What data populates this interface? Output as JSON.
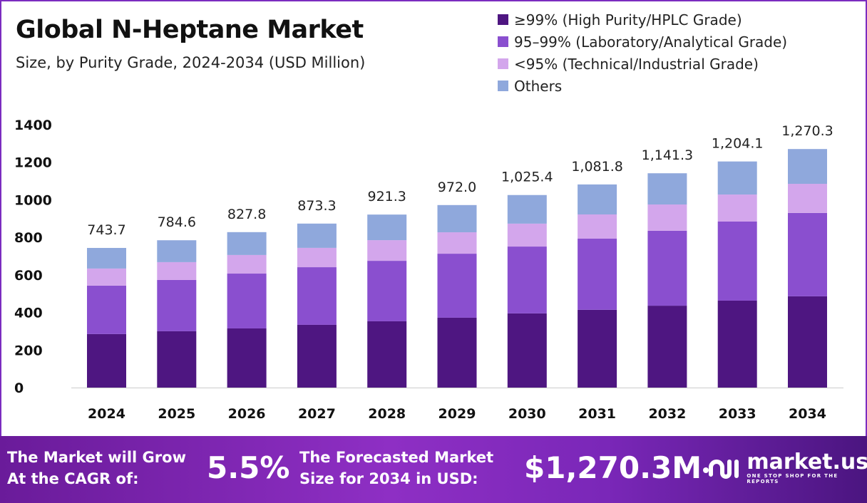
{
  "header": {
    "title": "Global N-Heptane Market",
    "subtitle": "Size, by Purity Grade, 2024-2034 (USD Million)"
  },
  "chart_data": {
    "type": "bar",
    "stacked": true,
    "categories": [
      "2024",
      "2025",
      "2026",
      "2027",
      "2028",
      "2029",
      "2030",
      "2031",
      "2032",
      "2033",
      "2034"
    ],
    "series": [
      {
        "name": "≥99% (High Purity/HPLC Grade)",
        "color": "#4e1681",
        "values": [
          285,
          300,
          315,
          334,
          353,
          372,
          395,
          414,
          436,
          463,
          486
        ]
      },
      {
        "name": "95–99% (Laboratory/Analytical Grade)",
        "color": "#8a4fcf",
        "values": [
          258,
          273,
          292,
          307,
          322,
          341,
          356,
          379,
          399,
          421,
          444
        ]
      },
      {
        "name": "<95% (Technical/Industrial Grade)",
        "color": "#d3a6ec",
        "values": [
          91,
          95,
          99,
          103,
          110,
          114,
          122,
          129,
          140,
          144,
          155
        ]
      },
      {
        "name": "Others",
        "color": "#8fa8dc",
        "values": [
          109.7,
          116.6,
          121.8,
          129.3,
          136.3,
          145,
          152.4,
          159.8,
          166.3,
          176.1,
          185.3
        ]
      }
    ],
    "totals": [
      "743.7",
      "784.6",
      "827.8",
      "873.3",
      "921.3",
      "972.0",
      "1,025.4",
      "1,081.8",
      "1,141.3",
      "1,204.1",
      "1,270.3"
    ],
    "yticks": [
      "0",
      "200",
      "400",
      "600",
      "800",
      "1000",
      "1200",
      "1400"
    ],
    "ylim": [
      0,
      1400
    ],
    "xlabel": "",
    "ylabel": "",
    "grid": false,
    "legend": "top-right"
  },
  "footer": {
    "cagr_label": "The Market will Grow At the CAGR of:",
    "cagr_value": "5.5%",
    "forecast_label": "The Forecasted Market Size for 2034 in USD:",
    "forecast_value": "$1,270.3M",
    "brand": "market.us",
    "tagline": "ONE STOP SHOP FOR THE REPORTS"
  }
}
